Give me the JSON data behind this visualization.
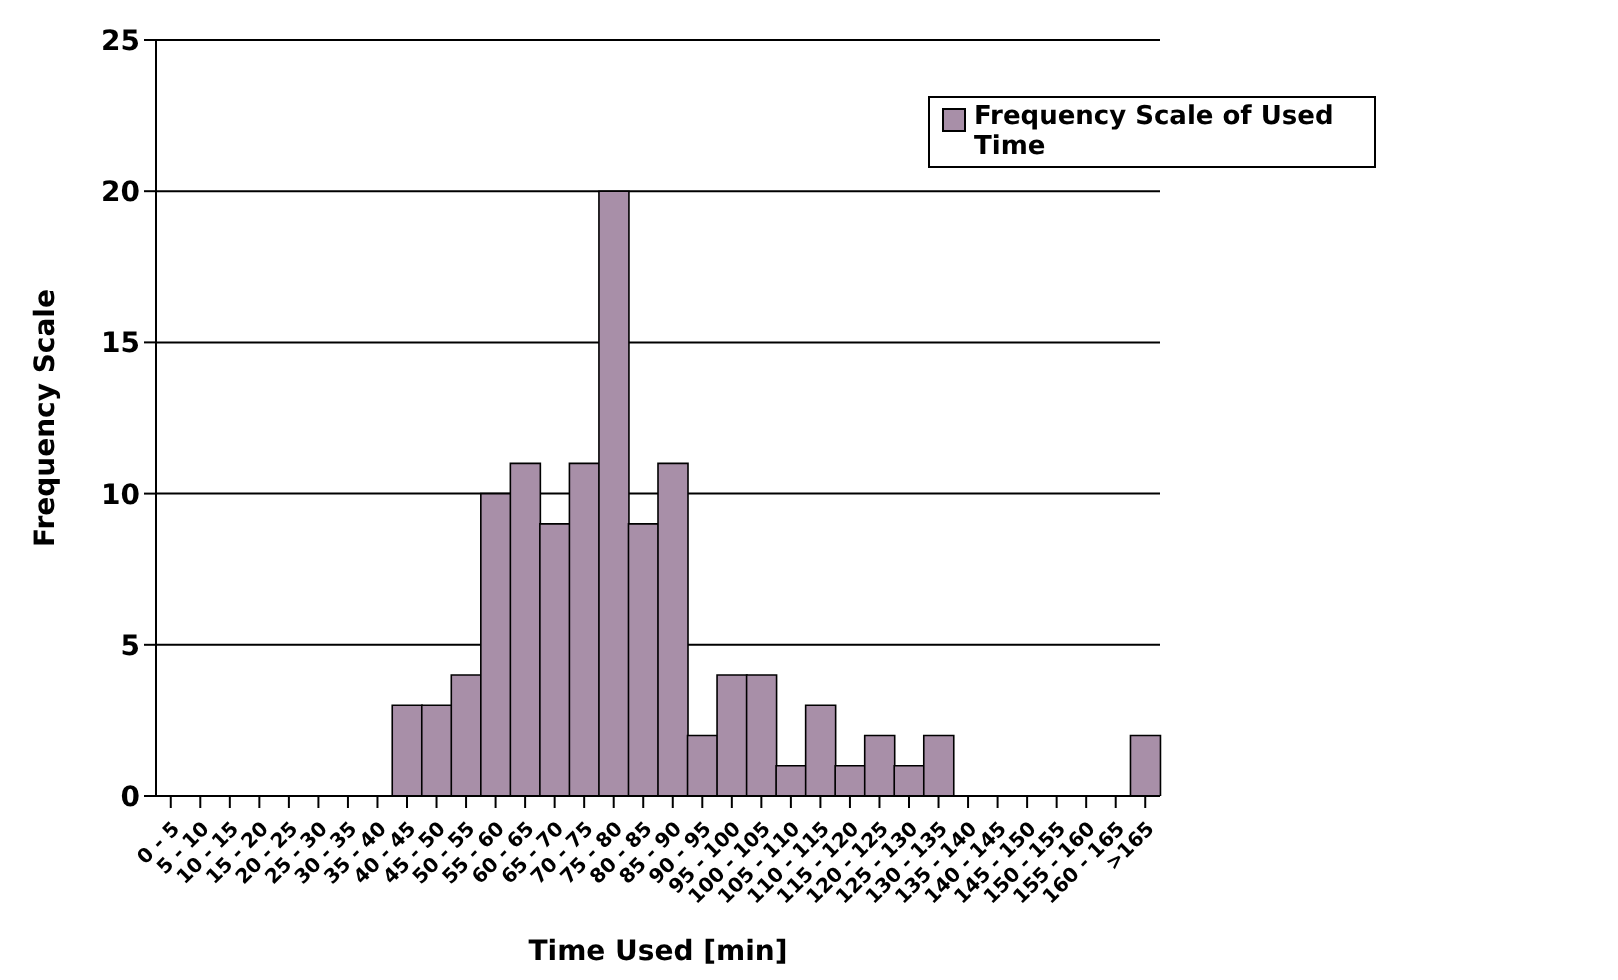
{
  "chart_data": {
    "type": "bar",
    "xlabel": "Time Used [min]",
    "ylabel": "Frequency Scale",
    "categories": [
      "0 - 5",
      "5 - 10",
      "10 - 15",
      "15 - 20",
      "20 - 25",
      "25 - 30",
      "30 - 35",
      "35 - 40",
      "40 - 45",
      "45 - 50",
      "50 - 55",
      "55 - 60",
      "60 - 65",
      "65 - 70",
      "70 - 75",
      "75 - 80",
      "80 - 85",
      "85 - 90",
      "90 - 95",
      "95 - 100",
      "100 - 105",
      "105 - 110",
      "110 - 115",
      "115 - 120",
      "120 - 125",
      "125 - 130",
      "130 - 135",
      "135 - 140",
      "140 - 145",
      "145 - 150",
      "150 - 155",
      "155 - 160",
      "160 - 165",
      ">165"
    ],
    "series": [
      {
        "name": "Frequency Scale of Used Time",
        "color": "#a88fa8",
        "values": [
          0,
          0,
          0,
          0,
          0,
          0,
          0,
          0,
          3,
          3,
          4,
          10,
          11,
          9,
          11,
          20,
          9,
          11,
          2,
          4,
          4,
          1,
          3,
          1,
          2,
          1,
          2,
          0,
          0,
          0,
          0,
          0,
          0,
          2
        ]
      }
    ],
    "ylim": [
      0,
      25
    ],
    "yticks": [
      0,
      5,
      10,
      15,
      20,
      25
    ],
    "grid": "y",
    "legend": "top right"
  }
}
